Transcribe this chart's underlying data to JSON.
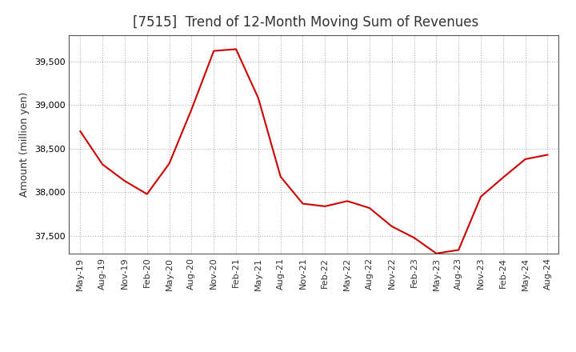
{
  "title": "[7515]  Trend of 12-Month Moving Sum of Revenues",
  "ylabel": "Amount (million yen)",
  "background_color": "#ffffff",
  "line_color": "#cc0000",
  "grid_color": "#aaaaaa",
  "x_labels": [
    "May-19",
    "Aug-19",
    "Nov-19",
    "Feb-20",
    "May-20",
    "Aug-20",
    "Nov-20",
    "Feb-21",
    "May-21",
    "Aug-21",
    "Nov-21",
    "Feb-22",
    "May-22",
    "Aug-22",
    "Nov-22",
    "Feb-23",
    "May-23",
    "Aug-23",
    "Nov-23",
    "Feb-24",
    "May-24",
    "Aug-24"
  ],
  "y_values": [
    38700,
    38320,
    38130,
    37980,
    38330,
    38950,
    39620,
    39640,
    39080,
    38180,
    37870,
    37840,
    37900,
    37820,
    37610,
    37480,
    37300,
    37340,
    37950,
    38170,
    38380,
    38430
  ],
  "ylim": [
    37300,
    39800
  ],
  "yticks": [
    37500,
    38000,
    38500,
    39000,
    39500
  ],
  "title_fontsize": 12,
  "label_fontsize": 9,
  "tick_fontsize": 8
}
